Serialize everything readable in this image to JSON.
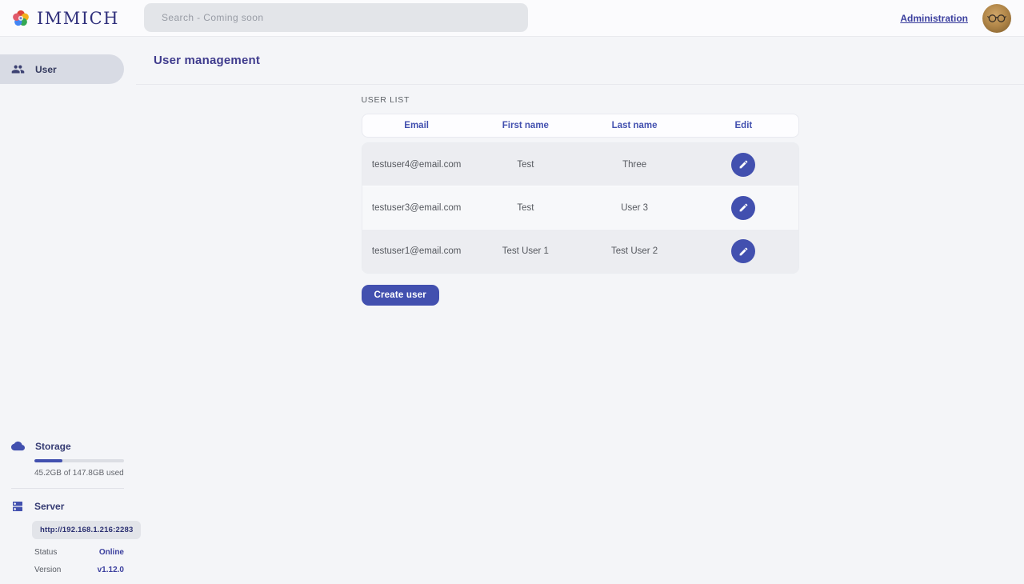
{
  "header": {
    "logo_text": "IMMICH",
    "search_placeholder": "Search - Coming soon",
    "admin_link": "Administration"
  },
  "sidebar": {
    "items": [
      {
        "label": "User",
        "icon": "group-icon",
        "active": true
      }
    ],
    "storage": {
      "title": "Storage",
      "icon": "cloud-icon",
      "usage_text": "45.2GB of 147.8GB used",
      "percent_used": 31
    },
    "server": {
      "title": "Server",
      "icon": "dns-server-icon",
      "url": "http://192.168.1.216:2283",
      "status_label": "Status",
      "status_value": "Online",
      "version_label": "Version",
      "version_value": "v1.12.0"
    }
  },
  "main": {
    "title": "User management",
    "section_label": "USER LIST",
    "table": {
      "columns": [
        "Email",
        "First name",
        "Last name",
        "Edit"
      ],
      "rows": [
        {
          "email": "testuser4@email.com",
          "first_name": "Test",
          "last_name": "Three"
        },
        {
          "email": "testuser3@email.com",
          "first_name": "Test",
          "last_name": "User 3"
        },
        {
          "email": "testuser1@email.com",
          "first_name": "Test User 1",
          "last_name": "Test User 2"
        }
      ],
      "edit_icon": "pencil-icon"
    },
    "create_button_label": "Create user"
  },
  "colors": {
    "accent": "#4250af",
    "active_pill": "#d8dbe4",
    "row_odd": "#ecedf1",
    "row_even": "#f7f8fa",
    "status_online": "#3b3f9e"
  }
}
